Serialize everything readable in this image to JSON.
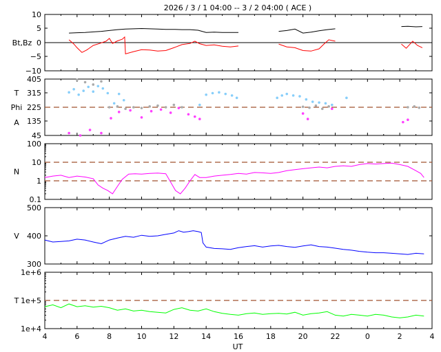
{
  "title": "2026 /  3 /  1   04:00 -- 3 /  2   04:00 ( ACE )",
  "xlabel": "UT",
  "colors": {
    "bt": "#000000",
    "bz": "#ff0000",
    "theta": "#87cefa",
    "phi_toward": "#ff40ff",
    "phi_away": "#aaaaaa",
    "density": "#ff00ff",
    "speed": "#0000ff",
    "temperature": "#00ff00",
    "reference": "#a0522d"
  },
  "chart_data": [
    {
      "type": "line",
      "panel": "magnetic-field",
      "ylabel": "Bt,Bz",
      "ylim": [
        -10,
        10
      ],
      "yticks": [
        "10",
        "5",
        "0",
        "−5",
        "−10"
      ],
      "xticks": [
        "4",
        "6",
        "8",
        "10",
        "12",
        "14",
        "16",
        "18",
        "20",
        "22",
        "0",
        "2",
        "4"
      ],
      "xrange_hours": [
        4,
        28
      ],
      "zero_line": 0,
      "series": [
        {
          "key": "bt",
          "segments": [
            {
              "x": [
                5.5,
                6.0,
                6.5,
                7.0,
                7.5,
                8.0,
                8.5,
                9.0,
                9.5,
                10.0,
                10.5,
                11.0,
                11.5,
                12.0,
                12.5,
                13.0,
                13.5,
                14.0,
                14.5,
                15.0,
                15.5,
                16.0
              ],
              "y": [
                3.4,
                3.5,
                3.6,
                3.8,
                4.0,
                4.3,
                4.6,
                4.8,
                4.9,
                5.0,
                4.9,
                4.8,
                4.7,
                4.7,
                4.6,
                4.6,
                4.4,
                3.6,
                3.7,
                3.6,
                3.6,
                3.6
              ]
            },
            {
              "x": [
                18.5,
                19.0,
                19.5,
                20.0,
                20.5,
                21.0,
                21.5,
                22.0
              ],
              "y": [
                4.0,
                4.3,
                4.8,
                3.4,
                3.7,
                4.2,
                4.6,
                4.9
              ]
            },
            {
              "x": [
                26.1,
                26.5,
                27.0,
                27.4
              ],
              "y": [
                5.7,
                5.8,
                5.6,
                5.7
              ]
            }
          ]
        },
        {
          "key": "bz",
          "segments": [
            {
              "x": [
                5.5,
                5.8,
                6.0,
                6.3,
                6.6,
                7.0,
                7.4,
                7.8,
                8.0,
                8.2,
                8.5,
                8.8,
                8.95,
                9.0,
                9.5,
                10.0,
                10.5,
                11.0,
                11.5,
                12.0,
                12.5,
                13.0,
                13.3,
                13.6,
                14.0,
                14.5,
                15.0,
                15.5,
                16.0
              ],
              "y": [
                1.0,
                -0.5,
                -1.8,
                -3.5,
                -2.6,
                -1.0,
                -0.3,
                0.5,
                1.5,
                -0.3,
                0.6,
                1.2,
                2.0,
                -4.0,
                -3.2,
                -2.5,
                -2.6,
                -3.0,
                -2.8,
                -1.8,
                -0.7,
                -0.3,
                0.5,
                -0.4,
                -1.0,
                -0.8,
                -1.3,
                -1.5,
                -1.2
              ]
            },
            {
              "x": [
                18.5,
                19.0,
                19.5,
                20.0,
                20.5,
                21.0,
                21.3,
                21.6,
                22.0
              ],
              "y": [
                -0.5,
                -1.5,
                -1.8,
                -2.8,
                -3.0,
                -2.2,
                -0.5,
                1.0,
                0.5
              ]
            },
            {
              "x": [
                26.1,
                26.4,
                26.8,
                27.1,
                27.4
              ],
              "y": [
                -0.5,
                -2.0,
                0.5,
                -1.0,
                -1.8
              ]
            }
          ]
        }
      ]
    },
    {
      "type": "scatter",
      "panel": "field-angles",
      "ylabel_lines": [
        "T",
        "Phi",
        "A"
      ],
      "ylim": [
        45,
        405
      ],
      "yticks": [
        "405",
        "315",
        "225",
        "135",
        "45"
      ],
      "reference_line": 225,
      "series": [
        {
          "key": "theta",
          "x": [
            5.5,
            5.8,
            6.1,
            6.4,
            6.7,
            7.0,
            7.3,
            7.6,
            7.9,
            8.3,
            8.6,
            8.9,
            13.6,
            14.0,
            14.4,
            14.8,
            15.2,
            15.6,
            15.9,
            18.4,
            18.7,
            19.0,
            19.4,
            19.8,
            20.2,
            20.6,
            21.0,
            21.4,
            21.8,
            22.7
          ],
          "y": [
            320,
            340,
            305,
            330,
            355,
            325,
            360,
            345,
            315,
            250,
            310,
            270,
            240,
            305,
            315,
            320,
            310,
            300,
            285,
            285,
            300,
            310,
            300,
            295,
            275,
            260,
            255,
            250,
            240,
            285
          ]
        },
        {
          "key": "phi_away",
          "x": [
            6.0,
            6.5,
            7.0,
            7.5,
            8.0,
            8.5,
            9.0,
            9.5,
            10.0,
            10.5,
            11.0,
            11.5,
            12.0,
            12.5,
            20.0,
            20.4,
            20.8,
            21.2,
            21.6,
            26.5,
            26.9,
            27.2
          ],
          "y": [
            400,
            385,
            370,
            390,
            225,
            230,
            215,
            225,
            220,
            230,
            235,
            225,
            240,
            225,
            228,
            222,
            235,
            215,
            230,
            225,
            230,
            222
          ]
        },
        {
          "key": "phi_toward",
          "x": [
            5.5,
            6.2,
            6.8,
            7.5,
            8.1,
            8.6,
            9.3,
            10.0,
            10.6,
            11.2,
            11.8,
            12.3,
            12.9,
            13.3,
            13.6,
            20.0,
            20.3,
            21.8,
            26.2,
            26.5
          ],
          "y": [
            60,
            45,
            80,
            60,
            155,
            195,
            205,
            160,
            200,
            210,
            190,
            220,
            180,
            165,
            150,
            185,
            150,
            215,
            130,
            145
          ]
        }
      ]
    },
    {
      "type": "line",
      "panel": "density",
      "ylabel": "N",
      "scale": "log",
      "ylim": [
        0.1,
        100
      ],
      "yticks": [
        "100",
        "10",
        "1",
        "0.1"
      ],
      "reference_lines": [
        10,
        1
      ],
      "series": [
        {
          "key": "density",
          "segments": [
            {
              "x": [
                4.0,
                4.5,
                5.0,
                5.5,
                6.0,
                6.5,
                7.0,
                7.3,
                7.6,
                7.9,
                8.2,
                8.5,
                8.8,
                9.2,
                9.6,
                10.0,
                10.5,
                11.0,
                11.5,
                11.9,
                12.1,
                12.4,
                12.7,
                13.0,
                13.3,
                13.6,
                14.0,
                14.5,
                15.0,
                15.5,
                16.0,
                16.5,
                17.0,
                17.5,
                18.0,
                18.5,
                19.0,
                19.5,
                20.0,
                20.5,
                21.0,
                21.5,
                22.0,
                22.5,
                23.0,
                23.5,
                24.0,
                24.5,
                25.0,
                25.5,
                26.0,
                26.5,
                27.0,
                27.3,
                27.5
              ],
              "y": [
                1.5,
                1.8,
                2.0,
                1.5,
                1.8,
                1.6,
                1.3,
                0.6,
                0.4,
                0.3,
                0.2,
                0.5,
                1.2,
                2.3,
                2.4,
                2.3,
                2.5,
                2.6,
                2.4,
                0.6,
                0.3,
                0.2,
                0.4,
                1.0,
                2.2,
                1.5,
                1.5,
                1.8,
                2.0,
                2.2,
                2.5,
                2.3,
                2.8,
                2.7,
                2.5,
                2.8,
                3.5,
                4.0,
                4.5,
                5.0,
                5.5,
                5.0,
                6.0,
                6.5,
                6.0,
                7.5,
                8.5,
                8.0,
                8.5,
                9.0,
                7.5,
                6.0,
                3.5,
                2.5,
                1.5
              ]
            }
          ]
        }
      ]
    },
    {
      "type": "line",
      "panel": "speed",
      "ylabel": "V",
      "ylim": [
        300,
        500
      ],
      "yticks": [
        "500",
        "400",
        "300"
      ],
      "series": [
        {
          "key": "speed",
          "segments": [
            {
              "x": [
                4.0,
                4.5,
                5.0,
                5.5,
                6.0,
                6.5,
                7.0,
                7.5,
                8.0,
                8.5,
                9.0,
                9.5,
                10.0,
                10.5,
                11.0,
                11.5,
                12.0,
                12.3,
                12.6,
                12.9,
                13.2,
                13.5,
                13.7,
                13.8,
                14.0,
                14.5,
                15.0,
                15.5,
                16.0,
                16.5,
                17.0,
                17.5,
                18.0,
                18.5,
                19.0,
                19.5,
                20.0,
                20.5,
                21.0,
                21.5,
                22.0,
                22.5,
                23.0,
                23.5,
                24.0,
                24.5,
                25.0,
                25.5,
                26.0,
                26.5,
                27.0,
                27.5
              ],
              "y": [
                385,
                378,
                380,
                382,
                388,
                385,
                378,
                372,
                385,
                392,
                398,
                395,
                402,
                398,
                400,
                405,
                410,
                418,
                413,
                415,
                418,
                415,
                412,
                375,
                360,
                355,
                354,
                352,
                358,
                362,
                365,
                360,
                364,
                366,
                362,
                359,
                364,
                368,
                362,
                360,
                356,
                352,
                349,
                345,
                342,
                340,
                340,
                338,
                336,
                334,
                338,
                336
              ]
            }
          ]
        }
      ]
    },
    {
      "type": "line",
      "panel": "temperature",
      "ylabel": "T",
      "scale": "log",
      "ylim": [
        10000,
        1000000
      ],
      "yticks": [
        "1e+6",
        "1e+5",
        "1e+4"
      ],
      "reference_line": 100000,
      "series": [
        {
          "key": "temperature",
          "segments": [
            {
              "x": [
                4.0,
                4.5,
                5.0,
                5.5,
                6.0,
                6.5,
                7.0,
                7.5,
                8.0,
                8.5,
                9.0,
                9.5,
                10.0,
                10.5,
                11.0,
                11.5,
                12.0,
                12.5,
                13.0,
                13.5,
                14.0,
                14.5,
                15.0,
                15.5,
                16.0,
                16.5,
                17.0,
                17.5,
                18.0,
                18.5,
                19.0,
                19.5,
                20.0,
                20.5,
                21.0,
                21.5,
                22.0,
                22.5,
                23.0,
                23.5,
                24.0,
                24.5,
                25.0,
                25.5,
                26.0,
                26.5,
                27.0,
                27.5
              ],
              "y": [
                60000,
                70000,
                55000,
                75000,
                60000,
                65000,
                58000,
                62000,
                55000,
                45000,
                50000,
                42000,
                45000,
                40000,
                38000,
                36000,
                48000,
                55000,
                45000,
                42000,
                50000,
                40000,
                35000,
                32000,
                30000,
                34000,
                36000,
                32000,
                34000,
                35000,
                33000,
                38000,
                30000,
                34000,
                36000,
                40000,
                30000,
                28000,
                32000,
                30000,
                28000,
                32000,
                30000,
                26000,
                24000,
                26000,
                30000,
                28000
              ]
            }
          ]
        }
      ]
    }
  ]
}
